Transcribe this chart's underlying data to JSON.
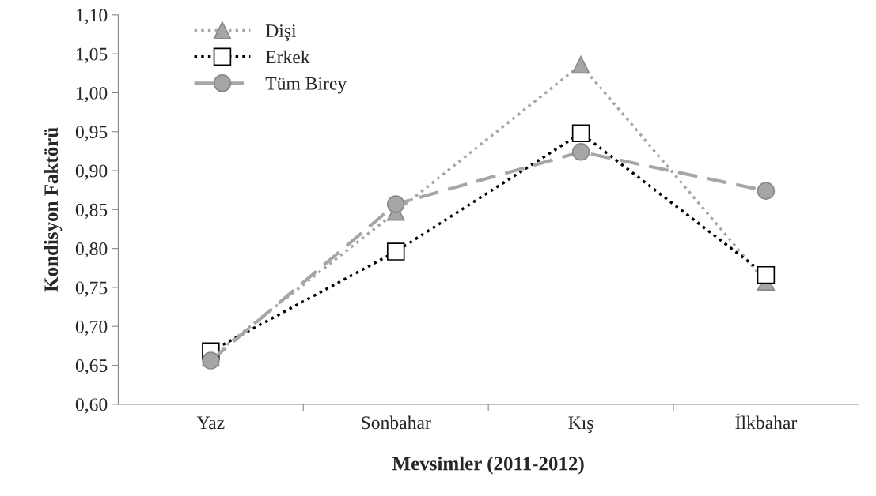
{
  "chart_data": {
    "type": "line",
    "xlabel": "Mevsimler (2011-2012)",
    "ylabel": "Kondisyon Faktörü",
    "categories": [
      "Yaz",
      "Sonbahar",
      "Kış",
      "İlkbahar"
    ],
    "series": [
      {
        "name": "Dişi",
        "color": "#a6a6a6",
        "values": [
          0.66,
          0.847,
          1.036,
          0.757
        ],
        "marker": "triangle",
        "line_style": "dotted"
      },
      {
        "name": "Erkek",
        "color": "#000000",
        "values": [
          0.668,
          0.796,
          0.948,
          0.766
        ],
        "marker": "square",
        "line_style": "dotted"
      },
      {
        "name": "Tüm Birey",
        "color": "#a6a6a6",
        "values": [
          0.656,
          0.857,
          0.924,
          0.874
        ],
        "marker": "circle",
        "line_style": "dashed"
      }
    ],
    "ylim": [
      0.6,
      1.1
    ],
    "yticks": [
      {
        "value": 0.6,
        "label": "0,60"
      },
      {
        "value": 0.65,
        "label": "0,65"
      },
      {
        "value": 0.7,
        "label": "0,70"
      },
      {
        "value": 0.75,
        "label": "0,75"
      },
      {
        "value": 0.8,
        "label": "0,80"
      },
      {
        "value": 0.85,
        "label": "0,85"
      },
      {
        "value": 0.9,
        "label": "0,90"
      },
      {
        "value": 0.95,
        "label": "0,95"
      },
      {
        "value": 1.0,
        "label": "1,00"
      },
      {
        "value": 1.05,
        "label": "1,05"
      },
      {
        "value": 1.1,
        "label": "1,10"
      }
    ],
    "grid": false,
    "legend": "top left"
  }
}
